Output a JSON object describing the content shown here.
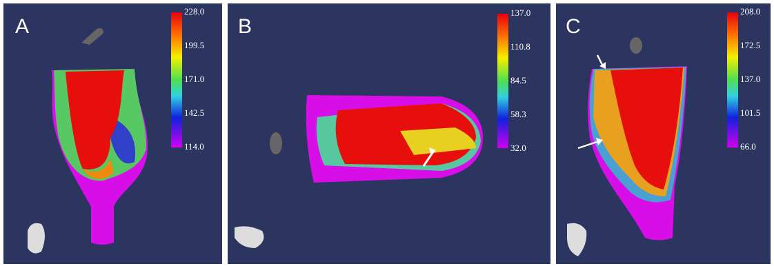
{
  "panels": [
    {
      "label": "A",
      "colorbar_ticks": [
        "228.0",
        "199.5",
        "171.0",
        "142.5",
        "114.0"
      ]
    },
    {
      "label": "B",
      "colorbar_ticks": [
        "137.0",
        "110.8",
        "84.5",
        "58.3",
        "32.0"
      ]
    },
    {
      "label": "C",
      "colorbar_ticks": [
        "208.0",
        "172.5",
        "137.0",
        "101.5",
        "66.0"
      ]
    }
  ]
}
